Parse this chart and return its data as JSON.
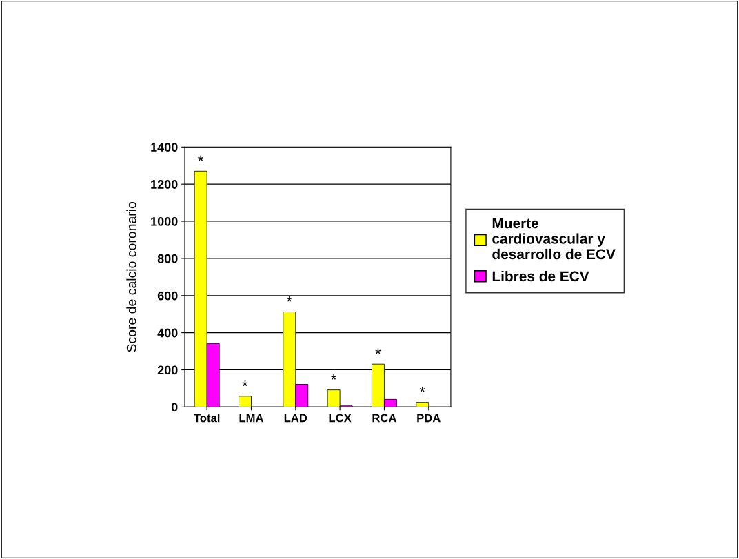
{
  "chart_data": {
    "type": "bar",
    "ylabel": "Score de calcio coronario",
    "categories": [
      "Total",
      "LMA",
      "LAD",
      "LCX",
      "RCA",
      "PDA"
    ],
    "series": [
      {
        "name": "Muerte cardiovascular y desarrollo de ECV",
        "color": "#ffff00",
        "values": [
          1270,
          58,
          512,
          92,
          231,
          25
        ]
      },
      {
        "name": "Libres de ECV",
        "color": "#ff00ff",
        "values": [
          342,
          null,
          122,
          6,
          41,
          null
        ]
      }
    ],
    "ylim": [
      0,
      1400
    ],
    "yticks": [
      0,
      200,
      400,
      600,
      800,
      1000,
      1200,
      1400
    ],
    "grid": "y",
    "legend": "right",
    "annotations": [
      {
        "text": "*",
        "x": "Total",
        "y": 1270
      },
      {
        "text": "*",
        "x": "LMA",
        "y": 58
      },
      {
        "text": "*",
        "x": "LAD",
        "y": 512
      },
      {
        "text": "*",
        "x": "LCX",
        "y": 92
      },
      {
        "text": "*",
        "x": "RCA",
        "y": 231
      },
      {
        "text": "*",
        "x": "PDA",
        "y": 25
      }
    ]
  }
}
